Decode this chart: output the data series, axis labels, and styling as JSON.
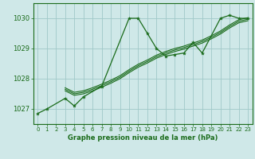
{
  "background_color": "#cfe8e8",
  "plot_bg_color": "#cfe8e8",
  "grid_color": "#a0c8c8",
  "line_color": "#1a6b1a",
  "marker_color": "#1a6b1a",
  "xlabel": "Graphe pression niveau de la mer (hPa)",
  "xlim": [
    -0.5,
    23.5
  ],
  "ylim": [
    1026.5,
    1030.5
  ],
  "yticks": [
    1027,
    1028,
    1029,
    1030
  ],
  "xticks": [
    0,
    1,
    2,
    3,
    4,
    5,
    6,
    7,
    8,
    9,
    10,
    11,
    12,
    13,
    14,
    15,
    16,
    17,
    18,
    19,
    20,
    21,
    22,
    23
  ],
  "series": [
    {
      "x": [
        0,
        1,
        3,
        4,
        5,
        7,
        10,
        11,
        12,
        13,
        14,
        15,
        16,
        17,
        18,
        20,
        21,
        22,
        23
      ],
      "y": [
        1026.85,
        1027.0,
        1027.35,
        1027.1,
        1027.4,
        1027.75,
        1030.0,
        1030.0,
        1029.5,
        1029.0,
        1028.75,
        1028.8,
        1028.85,
        1029.2,
        1028.85,
        1030.0,
        1030.1,
        1030.0,
        1030.0
      ]
    },
    {
      "x": [
        3,
        4,
        5,
        6,
        7,
        8,
        9,
        10,
        11,
        12,
        13,
        14,
        15,
        16,
        17,
        18,
        19,
        20,
        21,
        22,
        23
      ],
      "y": [
        1027.7,
        1027.55,
        1027.6,
        1027.7,
        1027.82,
        1027.95,
        1028.1,
        1028.3,
        1028.48,
        1028.62,
        1028.78,
        1028.9,
        1029.0,
        1029.08,
        1029.18,
        1029.28,
        1029.42,
        1029.58,
        1029.78,
        1029.95,
        1030.02
      ]
    },
    {
      "x": [
        3,
        4,
        5,
        6,
        7,
        8,
        9,
        10,
        11,
        12,
        13,
        14,
        15,
        16,
        17,
        18,
        19,
        20,
        21,
        22,
        23
      ],
      "y": [
        1027.65,
        1027.5,
        1027.55,
        1027.65,
        1027.77,
        1027.9,
        1028.05,
        1028.25,
        1028.43,
        1028.57,
        1028.73,
        1028.85,
        1028.95,
        1029.03,
        1029.13,
        1029.23,
        1029.37,
        1029.53,
        1029.73,
        1029.9,
        1029.97
      ]
    },
    {
      "x": [
        3,
        4,
        5,
        6,
        7,
        8,
        9,
        10,
        11,
        12,
        13,
        14,
        15,
        16,
        17,
        18,
        19,
        20,
        21,
        22,
        23
      ],
      "y": [
        1027.6,
        1027.45,
        1027.5,
        1027.6,
        1027.72,
        1027.85,
        1028.0,
        1028.2,
        1028.38,
        1028.52,
        1028.68,
        1028.8,
        1028.9,
        1028.98,
        1029.08,
        1029.18,
        1029.32,
        1029.48,
        1029.68,
        1029.85,
        1029.92
      ]
    }
  ]
}
